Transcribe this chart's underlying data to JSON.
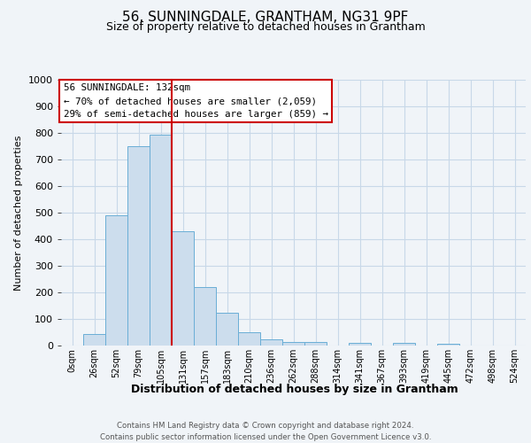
{
  "title": "56, SUNNINGDALE, GRANTHAM, NG31 9PF",
  "subtitle": "Size of property relative to detached houses in Grantham",
  "xlabel": "Distribution of detached houses by size in Grantham",
  "ylabel": "Number of detached properties",
  "footer_line1": "Contains HM Land Registry data © Crown copyright and database right 2024.",
  "footer_line2": "Contains public sector information licensed under the Open Government Licence v3.0.",
  "bar_labels": [
    "0sqm",
    "26sqm",
    "52sqm",
    "79sqm",
    "105sqm",
    "131sqm",
    "157sqm",
    "183sqm",
    "210sqm",
    "236sqm",
    "262sqm",
    "288sqm",
    "314sqm",
    "341sqm",
    "367sqm",
    "393sqm",
    "419sqm",
    "445sqm",
    "472sqm",
    "498sqm",
    "524sqm"
  ],
  "bar_values": [
    0,
    45,
    490,
    750,
    795,
    430,
    220,
    125,
    50,
    25,
    12,
    12,
    0,
    10,
    0,
    10,
    0,
    8,
    0,
    0,
    0
  ],
  "bar_color": "#ccdded",
  "bar_edge_color": "#6aaed6",
  "marker_index": 5,
  "marker_line_color": "#cc0000",
  "annotation_line1": "56 SUNNINGDALE: 132sqm",
  "annotation_line2": "← 70% of detached houses are smaller (2,059)",
  "annotation_line3": "29% of semi-detached houses are larger (859) →",
  "ylim": [
    0,
    1000
  ],
  "yticks": [
    0,
    100,
    200,
    300,
    400,
    500,
    600,
    700,
    800,
    900,
    1000
  ],
  "background_color": "#f0f4f8",
  "plot_bg_color": "#f0f4f8",
  "grid_color": "#c8d8e8"
}
